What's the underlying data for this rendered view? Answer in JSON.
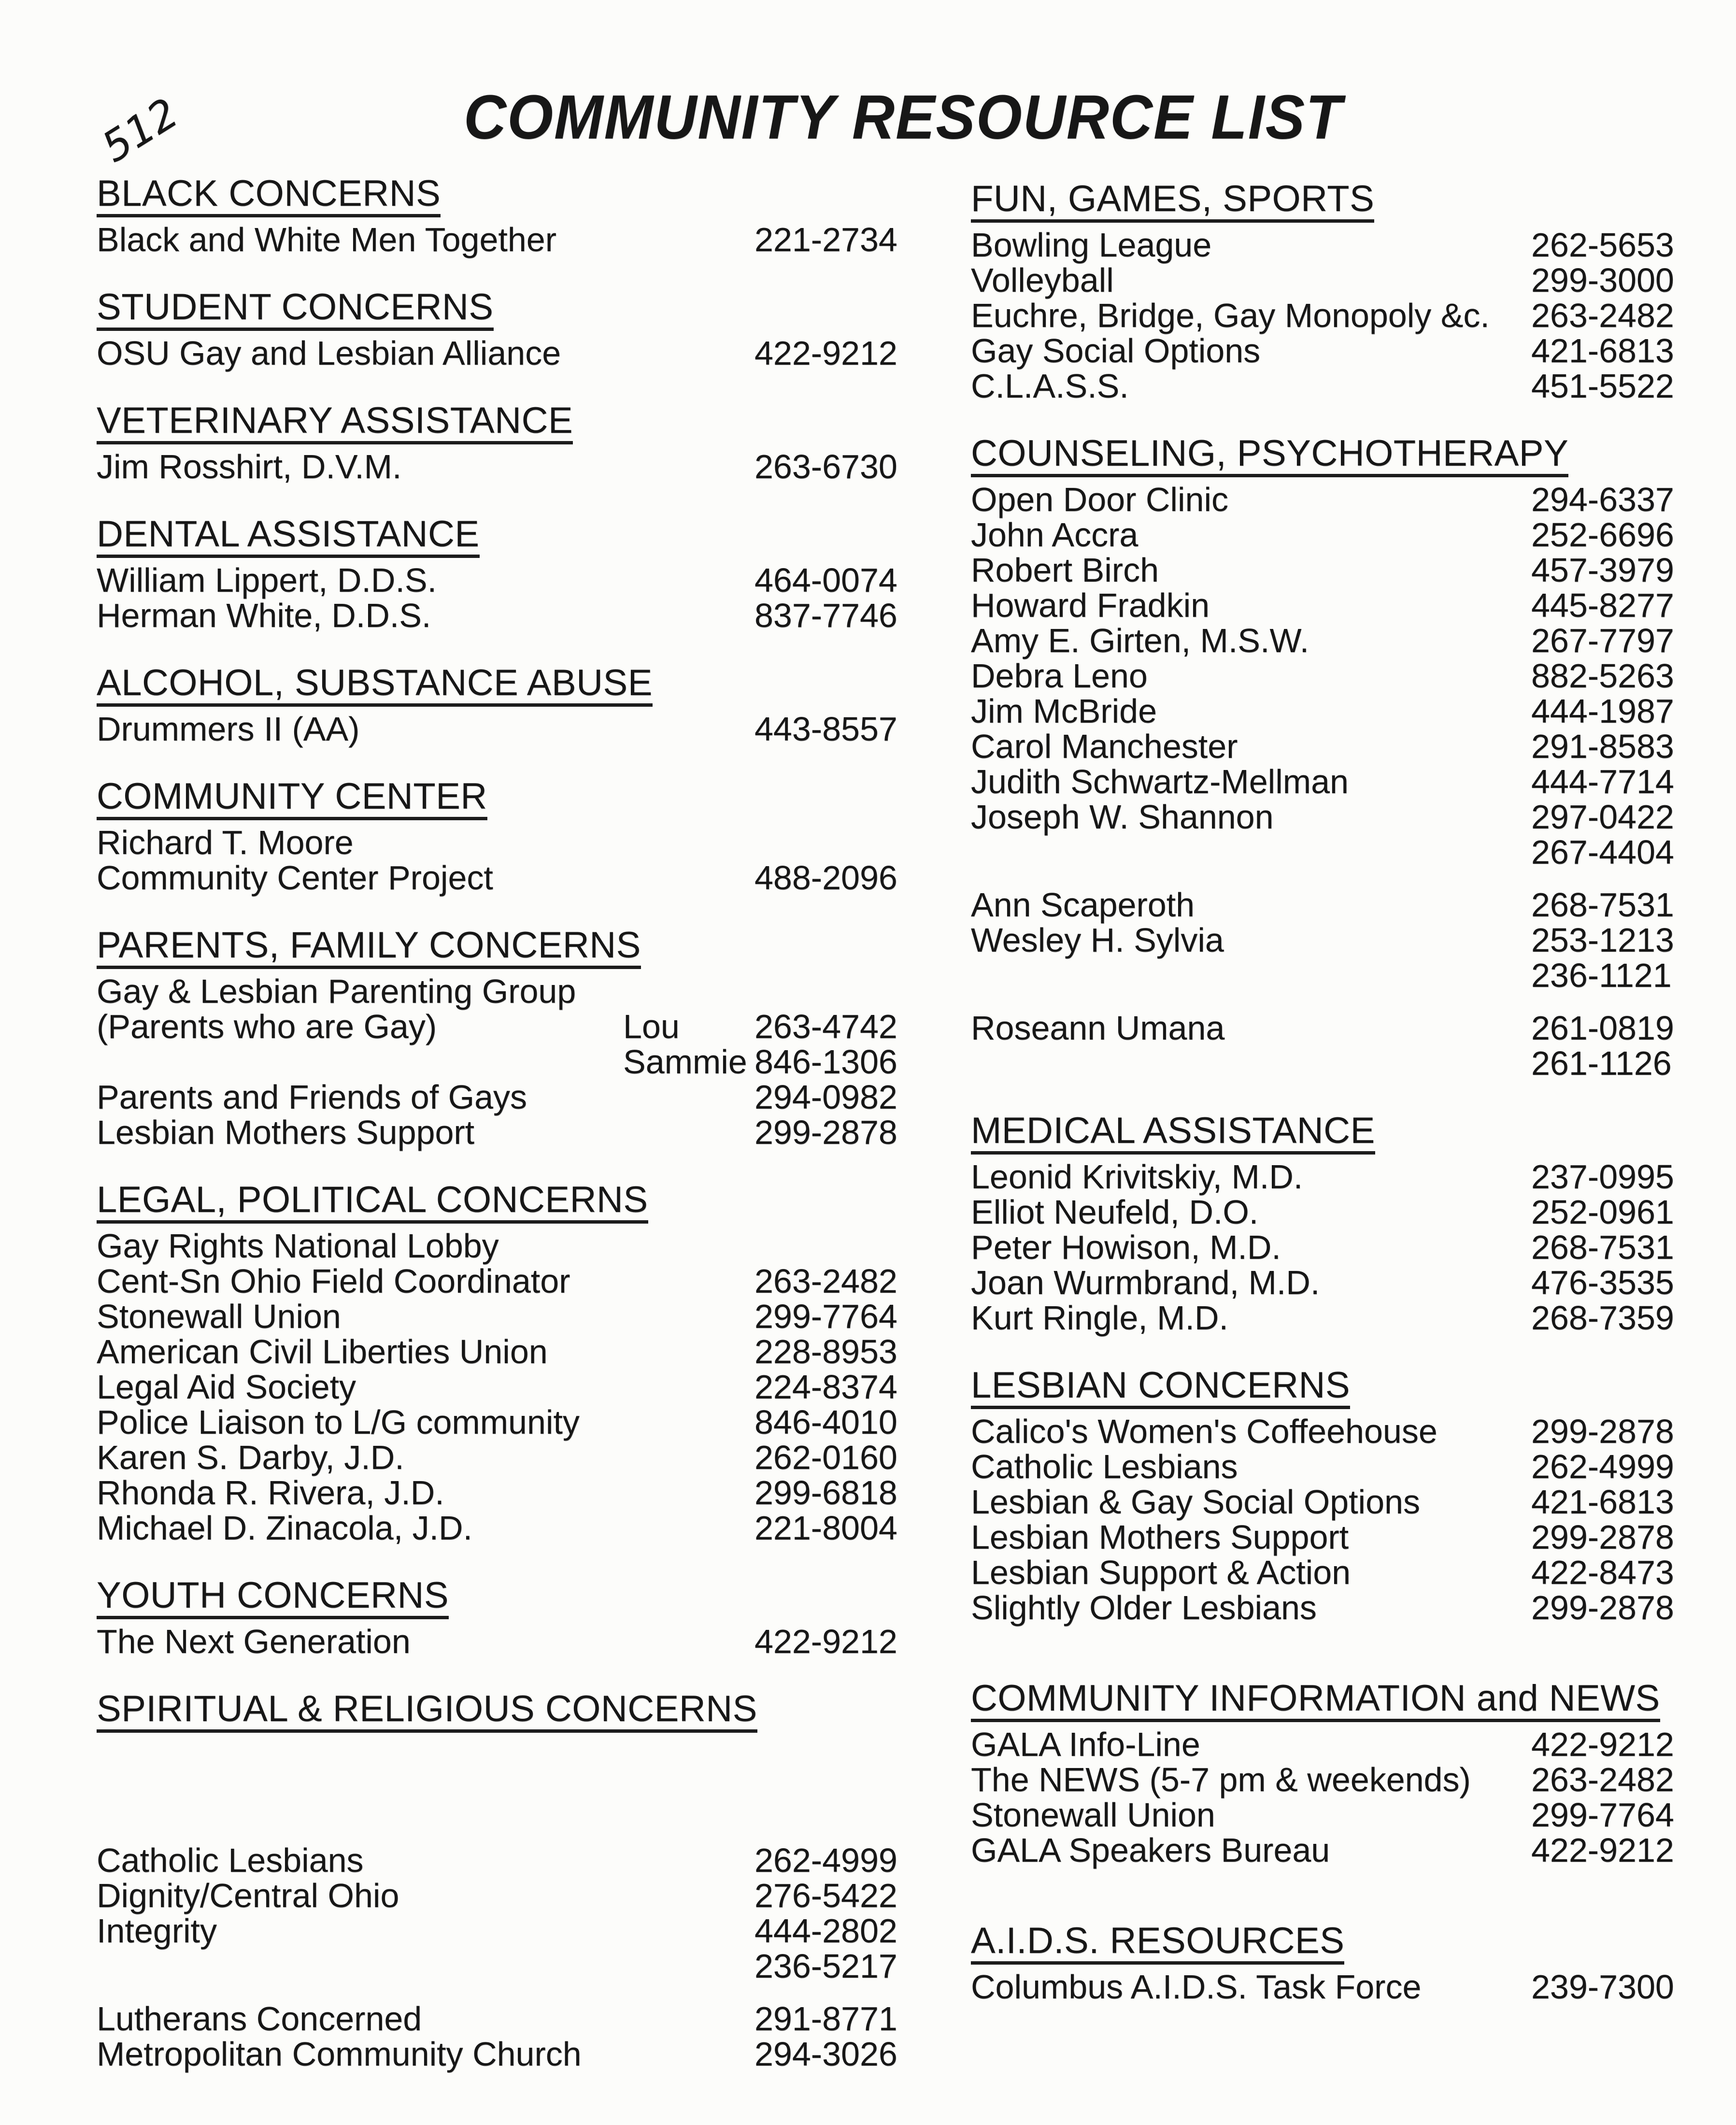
{
  "page": {
    "annotation": "512",
    "title": "COMMUNITY RESOURCE LIST"
  },
  "columns": [
    {
      "id": "left",
      "sections": [
        {
          "title": "BLACK CONCERNS",
          "entries": [
            {
              "name": "Black and White Men Together",
              "phone": "221-2734"
            }
          ]
        },
        {
          "title": "STUDENT CONCERNS",
          "entries": [
            {
              "name": "OSU Gay and Lesbian Alliance",
              "phone": "422-9212"
            }
          ]
        },
        {
          "title": "VETERINARY ASSISTANCE",
          "entries": [
            {
              "name": "Jim Rosshirt, D.V.M.",
              "phone": "263-6730"
            }
          ]
        },
        {
          "title": "DENTAL ASSISTANCE",
          "entries": [
            {
              "name": "William Lippert, D.D.S.",
              "phone": "464-0074"
            },
            {
              "name": "Herman White, D.D.S.",
              "phone": "837-7746"
            }
          ]
        },
        {
          "title": "ALCOHOL, SUBSTANCE ABUSE",
          "entries": [
            {
              "name": "Drummers II (AA)",
              "phone": "443-8557"
            }
          ]
        },
        {
          "title": "COMMUNITY CENTER",
          "entries": [
            {
              "name": "Richard T. Moore"
            },
            {
              "name": "Community Center Project",
              "phone": "488-2096"
            }
          ]
        },
        {
          "title": "PARENTS, FAMILY CONCERNS",
          "entries": [
            {
              "name": "Gay & Lesbian Parenting Group"
            },
            {
              "name": "(Parents who are Gay)",
              "contact": "Lou",
              "phone": "263-4742"
            },
            {
              "contact": "Sammie",
              "phone": "846-1306"
            },
            {
              "name": "Parents and Friends of Gays",
              "phone": "294-0982"
            },
            {
              "name": "Lesbian Mothers Support",
              "phone": "299-2878"
            }
          ]
        },
        {
          "title": "LEGAL, POLITICAL CONCERNS",
          "entries": [
            {
              "name": "Gay Rights National Lobby"
            },
            {
              "name": "Cent-Sn Ohio Field Coordinator",
              "phone": "263-2482"
            },
            {
              "name": "Stonewall Union",
              "phone": "299-7764"
            },
            {
              "name": "American Civil Liberties Union",
              "phone": "228-8953"
            },
            {
              "name": "Legal Aid Society",
              "phone": "224-8374"
            },
            {
              "name": "Police Liaison to L/G community",
              "phone": "846-4010"
            },
            {
              "name": "Karen S. Darby, J.D.",
              "phone": "262-0160"
            },
            {
              "name": "Rhonda R. Rivera, J.D.",
              "phone": "299-6818"
            },
            {
              "name": "Michael D. Zinacola, J.D.",
              "phone": "221-8004"
            }
          ]
        },
        {
          "title": "YOUTH CONCERNS",
          "entries": [
            {
              "name": "The Next Generation",
              "phone": "422-9212"
            }
          ]
        },
        {
          "title": "SPIRITUAL & RELIGIOUS CONCERNS",
          "entries": [
            {
              "name": "Catholic Lesbians",
              "phone": "262-4999",
              "gap_before": "xlarge"
            },
            {
              "name": "Dignity/Central Ohio",
              "phone": "276-5422"
            },
            {
              "name": "Integrity",
              "phone": "444-2802"
            },
            {
              "phone": "236-5217"
            },
            {
              "name": "Lutherans Concerned",
              "phone": "291-8771",
              "gap_before": "small"
            },
            {
              "name": "Metropolitan Community Church",
              "phone": "294-3026"
            }
          ]
        }
      ]
    },
    {
      "id": "right",
      "sections": [
        {
          "title": "FUN, GAMES, SPORTS",
          "entries": [
            {
              "name": "Bowling League",
              "phone": "262-5653"
            },
            {
              "name": "Volleyball",
              "phone": "299-3000"
            },
            {
              "name": "Euchre, Bridge, Gay Monopoly &c.",
              "phone": "263-2482"
            },
            {
              "name": "Gay Social Options",
              "phone": "421-6813"
            },
            {
              "name": "C.L.A.S.S.",
              "phone": "451-5522"
            }
          ]
        },
        {
          "title": "COUNSELING, PSYCHOTHERAPY",
          "entries": [
            {
              "name": "Open Door Clinic",
              "phone": "294-6337"
            },
            {
              "name": "John Accra",
              "phone": "252-6696"
            },
            {
              "name": "Robert Birch",
              "phone": "457-3979"
            },
            {
              "name": "Howard Fradkin",
              "phone": "445-8277"
            },
            {
              "name": "Amy E. Girten, M.S.W.",
              "phone": "267-7797"
            },
            {
              "name": "Debra Leno",
              "phone": "882-5263"
            },
            {
              "name": "Jim McBride",
              "phone": "444-1987"
            },
            {
              "name": "Carol Manchester",
              "phone": "291-8583"
            },
            {
              "name": "Judith Schwartz-Mellman",
              "phone": "444-7714"
            },
            {
              "name": "Joseph W. Shannon",
              "phone": "297-0422"
            },
            {
              "phone": "267-4404"
            },
            {
              "name": "Ann Scaperoth",
              "phone": "268-7531",
              "gap_before": "small"
            },
            {
              "name": "Wesley H. Sylvia",
              "phone": "253-1213"
            },
            {
              "phone": "236-1121"
            },
            {
              "name": "Roseann Umana",
              "phone": "261-0819",
              "gap_before": "small"
            },
            {
              "phone": "261-1126"
            }
          ]
        },
        {
          "title": "MEDICAL ASSISTANCE",
          "entries": [
            {
              "name": "Leonid Krivitskiy, M.D.",
              "phone": "237-0995"
            },
            {
              "name": "Elliot Neufeld, D.O.",
              "phone": "252-0961"
            },
            {
              "name": "Peter Howison, M.D.",
              "phone": "268-7531"
            },
            {
              "name": "Joan Wurmbrand, M.D.",
              "phone": "476-3535"
            },
            {
              "name": "Kurt Ringle, M.D.",
              "phone": "268-7359"
            }
          ]
        },
        {
          "title": "LESBIAN CONCERNS",
          "entries": [
            {
              "name": "Calico's Women's Coffeehouse",
              "phone": "299-2878"
            },
            {
              "name": "Catholic Lesbians",
              "phone": "262-4999"
            },
            {
              "name": "Lesbian & Gay Social Options",
              "phone": "421-6813"
            },
            {
              "name": "Lesbian Mothers Support",
              "phone": "299-2878"
            },
            {
              "name": "Lesbian Support & Action",
              "phone": "422-8473"
            },
            {
              "name": "Slightly Older Lesbians",
              "phone": "299-2878"
            }
          ]
        },
        {
          "title": "COMMUNITY INFORMATION and NEWS",
          "gap_before": "large",
          "entries": [
            {
              "name": "GALA Info-Line",
              "phone": "422-9212"
            },
            {
              "name": "The NEWS (5-7 pm & weekends)",
              "phone": "263-2482"
            },
            {
              "name": "Stonewall Union",
              "phone": "299-7764"
            },
            {
              "name": "GALA Speakers Bureau",
              "phone": "422-9212"
            }
          ]
        },
        {
          "title": "A.I.D.S. RESOURCES",
          "gap_before": "large",
          "entries": [
            {
              "name": "Columbus A.I.D.S. Task Force",
              "phone": "239-7300"
            }
          ]
        }
      ]
    }
  ]
}
